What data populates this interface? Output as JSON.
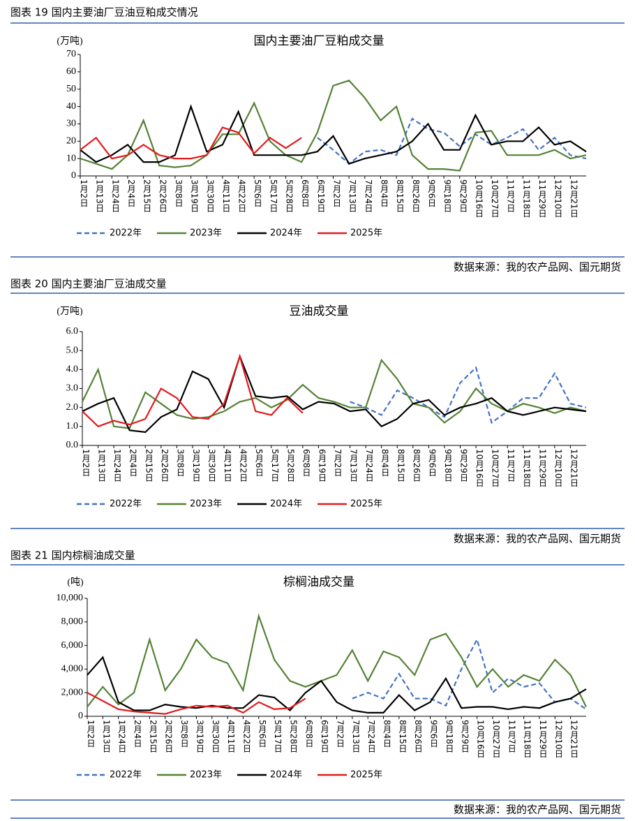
{
  "figures": [
    {
      "caption": "图表 19 国内主要油厂豆油豆粕成交情况",
      "source": "数据来源：我的农产品网、国元期货"
    },
    {
      "caption": "图表 20 国内主要油厂豆油成交量",
      "source": "数据来源：我的农产品网、国元期货"
    },
    {
      "caption": "图表 21 国内棕榈油成交量",
      "source": "数据来源：我的农产品网、国元期货"
    }
  ],
  "chart_data": [
    {
      "type": "line",
      "title": "国内主要油厂豆粕成交量",
      "y_label": "(万吨)",
      "categories": [
        "1月2日",
        "1月13日",
        "1月24日",
        "2月4日",
        "2月15日",
        "2月26日",
        "3月8日",
        "3月19日",
        "3月30日",
        "4月11日",
        "4月22日",
        "5月6日",
        "5月17日",
        "5月28日",
        "6月8日",
        "6月19日",
        "7月2日",
        "7月13日",
        "7月24日",
        "8月4日",
        "8月15日",
        "8月26日",
        "9月6日",
        "9月18日",
        "9月29日",
        "10月16日",
        "10月27日",
        "11月7日",
        "11月18日",
        "11月29日",
        "12月10日",
        "12月21日",
        null
      ],
      "ylim": [
        0,
        70
      ],
      "yticks": [
        0,
        10,
        20,
        30,
        40,
        50,
        60,
        70
      ],
      "series": [
        {
          "name": "2022年",
          "color": "#4472c4",
          "style": "dashed",
          "values": [
            null,
            null,
            null,
            null,
            null,
            null,
            null,
            null,
            null,
            null,
            null,
            null,
            null,
            null,
            null,
            22,
            15,
            7,
            14,
            15,
            12,
            33,
            27,
            25,
            17,
            24,
            18,
            22,
            27,
            15,
            22,
            12,
            10
          ]
        },
        {
          "name": "2023年",
          "color": "#548235",
          "style": "solid",
          "values": [
            10,
            7,
            4,
            12,
            32,
            6,
            5,
            6,
            12,
            24,
            24,
            42,
            20,
            12,
            8,
            25,
            52,
            55,
            45,
            32,
            40,
            12,
            4,
            4,
            3,
            25,
            26,
            12,
            12,
            12,
            15,
            10,
            12
          ]
        },
        {
          "name": "2024年",
          "color": "#000000",
          "style": "solid",
          "values": [
            15,
            8,
            12,
            18,
            8,
            8,
            12,
            40,
            14,
            18,
            37,
            12,
            12,
            12,
            12,
            14,
            23,
            7,
            10,
            12,
            14,
            20,
            30,
            15,
            15,
            35,
            18,
            20,
            20,
            28,
            18,
            20,
            14
          ]
        },
        {
          "name": "2025年",
          "color": "#e31a1c",
          "style": "solid",
          "values": [
            15,
            22,
            10,
            12,
            18,
            12,
            10,
            10,
            12,
            28,
            25,
            13,
            22,
            16,
            22,
            null,
            null,
            null,
            null,
            null,
            null,
            null,
            null,
            null,
            null,
            null,
            null,
            null,
            null,
            null,
            null,
            null,
            null
          ]
        }
      ]
    },
    {
      "type": "line",
      "title": "豆油成交量",
      "y_label": "(万吨)",
      "categories": [
        "1月2日",
        "1月13日",
        "1月24日",
        "2月4日",
        "2月15日",
        "2月26日",
        "3月8日",
        "3月19日",
        "3月30日",
        "4月11日",
        "4月22日",
        "5月6日",
        "5月17日",
        "5月28日",
        "6月8日",
        "6月19日",
        "7月2日",
        "7月13日",
        "7月24日",
        "8月4日",
        "8月15日",
        "8月26日",
        "9月6日",
        "9月18日",
        "9月29日",
        "10月16日",
        "10月27日",
        "11月7日",
        "11月18日",
        "11月29日",
        "12月10日",
        "12月21日",
        null
      ],
      "ylim": [
        0,
        6
      ],
      "yticks": [
        {
          "value": 0,
          "label": "0.0"
        },
        {
          "value": 1,
          "label": "1.0"
        },
        {
          "value": 2,
          "label": "2.0"
        },
        {
          "value": 3,
          "label": "3.0"
        },
        {
          "value": 4,
          "label": "4.0"
        },
        {
          "value": 5,
          "label": "5.0"
        },
        {
          "value": 6,
          "label": "6.0"
        }
      ],
      "series": [
        {
          "name": "2022年",
          "color": "#4472c4",
          "style": "dashed",
          "values": [
            null,
            null,
            null,
            null,
            null,
            null,
            null,
            null,
            null,
            null,
            null,
            null,
            null,
            null,
            null,
            null,
            null,
            2.3,
            2.0,
            1.6,
            2.9,
            2.5,
            2.0,
            1.5,
            3.3,
            4.1,
            1.2,
            1.8,
            2.5,
            2.5,
            3.8,
            2.2,
            2.0
          ]
        },
        {
          "name": "2023年",
          "color": "#548235",
          "style": "solid",
          "values": [
            2.3,
            4.0,
            1.0,
            0.9,
            2.8,
            2.2,
            1.6,
            1.4,
            1.5,
            1.8,
            2.3,
            2.5,
            2.0,
            2.4,
            3.2,
            2.5,
            2.3,
            2.0,
            2.0,
            4.5,
            3.5,
            2.2,
            2.0,
            1.2,
            1.8,
            3.0,
            2.2,
            1.8,
            2.2,
            2.0,
            1.7,
            2.0,
            1.8
          ]
        },
        {
          "name": "2024年",
          "color": "#000000",
          "style": "solid",
          "values": [
            1.8,
            2.2,
            2.5,
            0.8,
            0.7,
            1.5,
            1.9,
            3.9,
            3.5,
            2.0,
            4.7,
            2.6,
            2.5,
            2.6,
            1.9,
            2.3,
            2.2,
            1.8,
            1.9,
            1.0,
            1.4,
            2.2,
            2.4,
            1.6,
            2.0,
            2.2,
            2.5,
            1.8,
            1.6,
            1.8,
            2.0,
            1.9,
            1.8
          ]
        },
        {
          "name": "2025年",
          "color": "#e31a1c",
          "style": "solid",
          "values": [
            1.8,
            1.0,
            1.3,
            1.1,
            1.4,
            3.0,
            2.5,
            1.5,
            1.4,
            2.2,
            4.7,
            1.8,
            1.6,
            2.5,
            1.7,
            null,
            null,
            null,
            null,
            null,
            null,
            null,
            null,
            null,
            null,
            null,
            null,
            null,
            null,
            null,
            null,
            null,
            null
          ]
        }
      ]
    },
    {
      "type": "line",
      "title": "棕榈油成交量",
      "y_label": "(吨)",
      "categories": [
        "1月2日",
        "1月13日",
        "1月24日",
        "2月4日",
        "2月15日",
        "2月26日",
        "3月8日",
        "3月19日",
        "3月30日",
        "4月11日",
        "4月22日",
        "5月6日",
        "5月17日",
        "5月28日",
        "6月8日",
        "6月19日",
        "7月2日",
        "7月13日",
        "7月24日",
        "8月4日",
        "8月15日",
        "8月26日",
        "9月6日",
        "9月18日",
        "9月29日",
        "10月16日",
        "10月27日",
        "11月7日",
        "11月18日",
        "11月29日",
        "12月10日",
        "12月21日",
        null
      ],
      "ylim": [
        0,
        10000
      ],
      "yticks": [
        0,
        {
          "value": 2000,
          "label": "2,000"
        },
        {
          "value": 4000,
          "label": "4,000"
        },
        {
          "value": 6000,
          "label": "6,000"
        },
        {
          "value": 8000,
          "label": "8,000"
        },
        {
          "value": 10000,
          "label": "10,000"
        }
      ],
      "series": [
        {
          "name": "2022年",
          "color": "#4472c4",
          "style": "dashed",
          "values": [
            null,
            null,
            null,
            null,
            null,
            null,
            null,
            null,
            null,
            null,
            null,
            null,
            null,
            null,
            null,
            null,
            null,
            1500,
            2000,
            1500,
            3600,
            1500,
            1500,
            900,
            4000,
            6500,
            2000,
            3200,
            2500,
            2800,
            1200,
            1500,
            600
          ]
        },
        {
          "name": "2023年",
          "color": "#548235",
          "style": "solid",
          "values": [
            800,
            2500,
            1000,
            2000,
            6500,
            2200,
            4000,
            6500,
            5000,
            4500,
            2200,
            8500,
            4800,
            3000,
            2500,
            3000,
            3500,
            5600,
            3000,
            5500,
            5000,
            3500,
            6500,
            7000,
            5000,
            2500,
            4000,
            2500,
            3500,
            3000,
            4800,
            3500,
            800
          ]
        },
        {
          "name": "2024年",
          "color": "#000000",
          "style": "solid",
          "values": [
            3500,
            5000,
            1200,
            500,
            500,
            1000,
            800,
            700,
            900,
            700,
            700,
            1800,
            1600,
            500,
            2000,
            3000,
            1200,
            500,
            300,
            300,
            1800,
            500,
            1200,
            3200,
            700,
            800,
            800,
            600,
            800,
            700,
            1200,
            1500,
            2300
          ]
        },
        {
          "name": "2025年",
          "color": "#e31a1c",
          "style": "solid",
          "values": [
            2000,
            1300,
            600,
            400,
            300,
            200,
            600,
            900,
            800,
            900,
            300,
            1200,
            600,
            700,
            1500,
            null,
            null,
            null,
            null,
            null,
            null,
            null,
            null,
            null,
            null,
            null,
            null,
            null,
            null,
            null,
            null,
            null,
            null
          ]
        }
      ]
    }
  ]
}
